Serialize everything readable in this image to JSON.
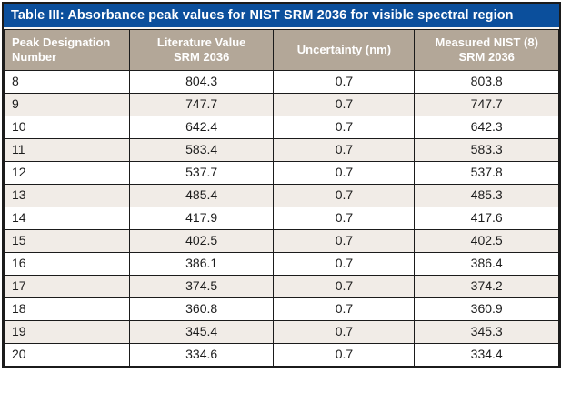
{
  "colors": {
    "title_bar_bg": "#0b4f9c",
    "header_bg": "#b3a798",
    "stripe_bg": "#f1ece7",
    "grid_line": "#1b1b1b"
  },
  "table": {
    "title": "Table III: Absorbance peak values for NIST SRM 2036 for visible spectral region",
    "columns": [
      {
        "label": "Peak Designation\nNumber",
        "align": "left"
      },
      {
        "label": "Literature Value\nSRM 2036",
        "align": "center"
      },
      {
        "label": "Uncertainty (nm)",
        "align": "center"
      },
      {
        "label": "Measured NIST (8)\nSRM 2036",
        "align": "center"
      }
    ],
    "rows": [
      [
        "8",
        "804.3",
        "0.7",
        "803.8"
      ],
      [
        "9",
        "747.7",
        "0.7",
        "747.7"
      ],
      [
        "10",
        "642.4",
        "0.7",
        "642.3"
      ],
      [
        "11",
        "583.4",
        "0.7",
        "583.3"
      ],
      [
        "12",
        "537.7",
        "0.7",
        "537.8"
      ],
      [
        "13",
        "485.4",
        "0.7",
        "485.3"
      ],
      [
        "14",
        "417.9",
        "0.7",
        "417.6"
      ],
      [
        "15",
        "402.5",
        "0.7",
        "402.5"
      ],
      [
        "16",
        "386.1",
        "0.7",
        "386.4"
      ],
      [
        "17",
        "374.5",
        "0.7",
        "374.2"
      ],
      [
        "18",
        "360.8",
        "0.7",
        "360.9"
      ],
      [
        "19",
        "345.4",
        "0.7",
        "345.3"
      ],
      [
        "20",
        "334.6",
        "0.7",
        "334.4"
      ]
    ]
  }
}
